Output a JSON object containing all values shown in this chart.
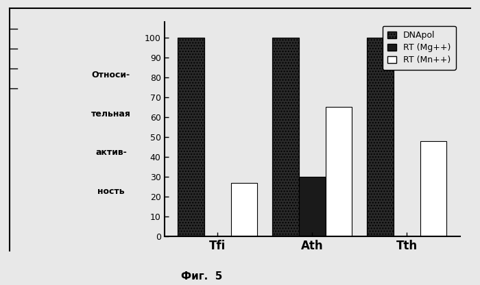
{
  "categories": [
    "Tfi",
    "Ath",
    "Tth"
  ],
  "series": {
    "DNApol": [
      100,
      100,
      100
    ],
    "RT_Mg": [
      0,
      30,
      0
    ],
    "RT_Mn": [
      27,
      65,
      48
    ]
  },
  "colors": {
    "DNApol": "#2a2a2a",
    "RT_Mg": "#1a1a1a",
    "RT_Mn": "#ffffff"
  },
  "ylabel_lines": [
    "Относи-",
    "тельная",
    "актив-",
    "ность"
  ],
  "legend_labels": [
    "DNApol",
    "RT (Mg++)",
    "RT (Mn++)"
  ],
  "caption": "Фиг.  5",
  "ylim": [
    0,
    108
  ],
  "yticks": [
    0,
    10,
    20,
    30,
    40,
    50,
    60,
    70,
    80,
    90,
    100
  ],
  "bar_width": 0.28,
  "background_color": "#e8e8e8",
  "plot_bg": "#e8e8e8",
  "edge_color": "#000000",
  "border_color": "#000000"
}
